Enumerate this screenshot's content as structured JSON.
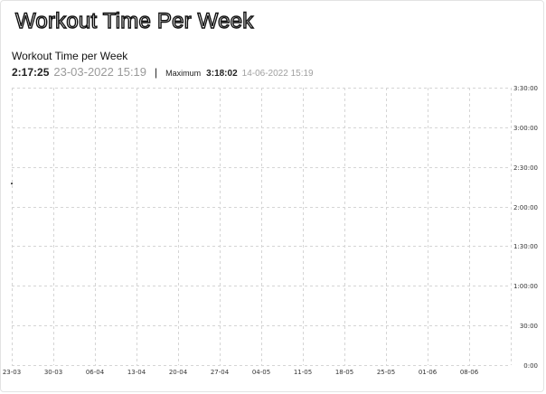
{
  "page": {
    "title": "Workout Time Per Week"
  },
  "summary": {
    "chart_title": "Workout Time per Week",
    "current_value": "2:17:25",
    "current_date": "23-03-2022 15:19",
    "separator": "|",
    "max_label": "Maximum",
    "max_value": "3:18:02",
    "max_date": "14-06-2022 15:19"
  },
  "chart_data": {
    "type": "line",
    "title": "Workout Time per Week",
    "xlabel": "",
    "ylabel": "",
    "x_tick_labels": [
      "23-03",
      "30-03",
      "06-04",
      "13-04",
      "20-04",
      "27-04",
      "04-05",
      "11-05",
      "18-05",
      "25-05",
      "01-06",
      "08-06"
    ],
    "y_tick_labels": [
      "0:00",
      "30:00",
      "1:00:00",
      "1:30:00",
      "2:00:00",
      "2:30:00",
      "3:00:00",
      "3:30:00"
    ],
    "y_ticks_seconds": [
      0,
      1800,
      3600,
      5400,
      7200,
      9000,
      10800,
      12600
    ],
    "ylim_seconds": [
      0,
      12600
    ],
    "y_axis_position": "right",
    "grid": true,
    "grid_style": "dashed",
    "series": [
      {
        "x": [
          "23-03"
        ],
        "values_seconds": [
          8245
        ],
        "color": "#1f1f1f"
      }
    ]
  }
}
